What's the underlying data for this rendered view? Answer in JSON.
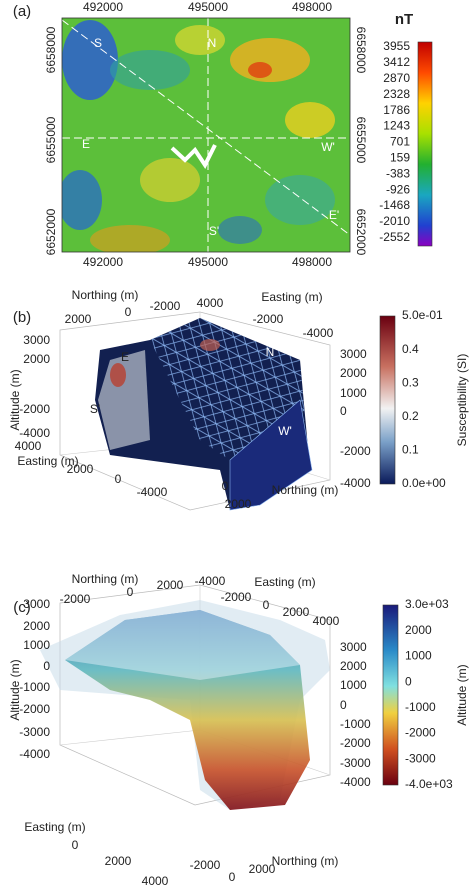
{
  "panel_a": {
    "label": "(a)",
    "top_ticks": [
      492000,
      495000,
      498000
    ],
    "bottom_ticks": [
      492000,
      495000,
      498000
    ],
    "left_ticks": [
      6658000,
      6655000,
      6652000
    ],
    "right_ticks": [
      6658000,
      6655000,
      6652000
    ],
    "annotations": [
      "S",
      "N",
      "E",
      "W'",
      "S'",
      "E'"
    ],
    "colorbar": {
      "title": "nT",
      "ticks": [
        3955,
        3412,
        2870,
        2328,
        1786,
        1243,
        701,
        159,
        -383,
        -926,
        -1468,
        -2010,
        -2552
      ]
    }
  },
  "panel_b": {
    "label": "(b)",
    "top_left": {
      "title": "Northing (m)",
      "ticks": [
        2000,
        0,
        -2000
      ]
    },
    "top_right": {
      "title": "Easting (m)",
      "ticks": [
        4000,
        -2000,
        -4000
      ]
    },
    "left": {
      "title": "Altitude (m)",
      "ticks": [
        3000,
        2000,
        -2000,
        -4000
      ]
    },
    "right": {
      "ticks": [
        3000,
        2000,
        1000,
        0,
        -2000,
        -4000
      ]
    },
    "bottom_left": {
      "title": "Easting (m)",
      "ticks": [
        4000,
        2000,
        0,
        -4000
      ]
    },
    "bottom_right": {
      "title": "Northing (m)",
      "ticks": [
        0,
        2000
      ]
    },
    "annotations": [
      "E",
      "N",
      "S'",
      "W'"
    ],
    "colorbar": {
      "title": "Susceptibility (SI)",
      "ticks": [
        "5.0e-01",
        0.4,
        0.3,
        0.2,
        0.1,
        "0.0e+00"
      ]
    }
  },
  "panel_c": {
    "label": "(c)",
    "top_left": {
      "title": "Northing (m)",
      "ticks": [
        -2000,
        0,
        2000
      ]
    },
    "top_right": {
      "title": "Easting (m)",
      "ticks": [
        -4000,
        -2000,
        0,
        2000,
        4000
      ]
    },
    "left": {
      "title": "Altitude (m)",
      "ticks": [
        3000,
        2000,
        1000,
        0,
        -1000,
        -2000,
        -3000,
        -4000
      ]
    },
    "right": {
      "ticks": [
        3000,
        2000,
        1000,
        0,
        -1000,
        -2000,
        -3000,
        -4000
      ]
    },
    "bottom_left": {
      "title": "Easting (m)",
      "ticks": [
        0,
        2000,
        4000
      ]
    },
    "bottom_right": {
      "title": "Northing (m)",
      "ticks": [
        -2000,
        0,
        2000
      ]
    },
    "colorbar": {
      "title": "Altitude (m)",
      "ticks": [
        "3.0e+03",
        2000,
        1000,
        0,
        -1000,
        -2000,
        -3000,
        "-4.0e+03"
      ]
    }
  }
}
